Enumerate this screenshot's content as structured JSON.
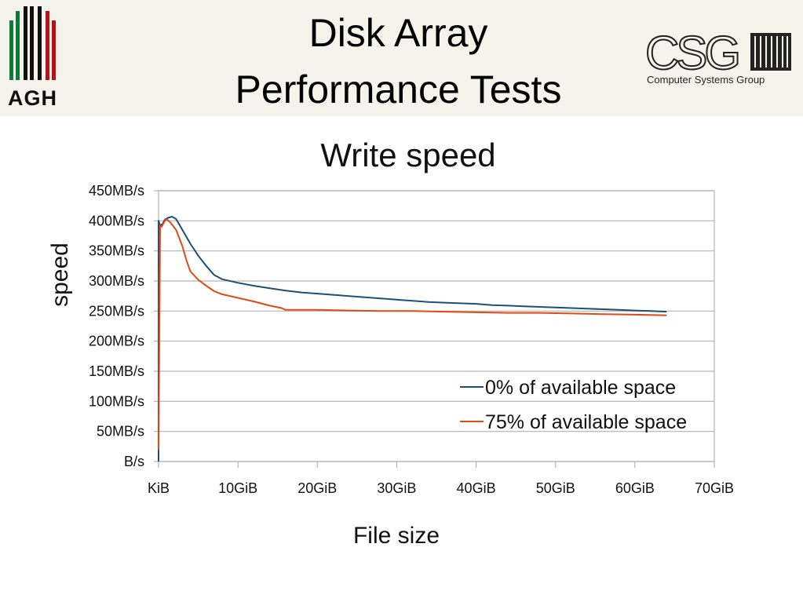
{
  "slide": {
    "title_line1": "Disk Array",
    "title_line2": "Performance Tests",
    "left_logo_text": "AGH",
    "right_logo_text": "Computer Systems Group",
    "right_logo_mark": "CSG"
  },
  "colors": {
    "header_bg": "#f4f4ec",
    "grid": "#b4b4b4",
    "series_0": "#1f4e79",
    "series_75": "#e04a14"
  },
  "chart_data": {
    "type": "line",
    "title": "Write speed",
    "xlabel": "File size",
    "ylabel": "speed",
    "xlim": [
      0,
      70
    ],
    "ylim": [
      0,
      450
    ],
    "x_unit": "GiB",
    "y_unit": "MB/s",
    "x_ticks": [
      0,
      10,
      20,
      30,
      40,
      50,
      60,
      70
    ],
    "x_tick_labels": [
      "KiB",
      "10GiB",
      "20GiB",
      "30GiB",
      "40GiB",
      "50GiB",
      "60GiB",
      "70GiB"
    ],
    "y_ticks": [
      0,
      50,
      100,
      150,
      200,
      250,
      300,
      350,
      400,
      450
    ],
    "y_tick_labels": [
      "B/s",
      "50MB/s",
      "100MB/s",
      "150MB/s",
      "200MB/s",
      "250MB/s",
      "300MB/s",
      "350MB/s",
      "400MB/s",
      "450MB/s"
    ],
    "grid": true,
    "legend_position": "bottom-right",
    "series": [
      {
        "name": "0% of available space",
        "color": "#1f4e79",
        "points": [
          [
            0,
            0
          ],
          [
            0,
            400
          ],
          [
            0.2,
            392
          ],
          [
            0.5,
            395
          ],
          [
            0.8,
            402
          ],
          [
            1.2,
            405
          ],
          [
            1.7,
            407
          ],
          [
            2.2,
            403
          ],
          [
            3,
            385
          ],
          [
            4,
            362
          ],
          [
            5,
            342
          ],
          [
            6,
            325
          ],
          [
            7,
            310
          ],
          [
            8,
            303
          ],
          [
            10,
            297
          ],
          [
            12,
            292
          ],
          [
            14,
            288
          ],
          [
            16,
            284
          ],
          [
            18,
            281
          ],
          [
            20,
            279
          ],
          [
            22,
            277
          ],
          [
            24,
            275
          ],
          [
            26,
            273
          ],
          [
            28,
            271
          ],
          [
            30,
            269
          ],
          [
            32,
            267
          ],
          [
            34,
            265
          ],
          [
            36,
            264
          ],
          [
            38,
            263
          ],
          [
            40,
            262
          ],
          [
            42,
            260
          ],
          [
            44,
            259
          ],
          [
            46,
            258
          ],
          [
            48,
            257
          ],
          [
            50,
            256
          ],
          [
            52,
            255
          ],
          [
            54,
            254
          ],
          [
            56,
            253
          ],
          [
            58,
            252
          ],
          [
            60,
            251
          ],
          [
            62,
            250
          ],
          [
            64,
            249
          ]
        ]
      },
      {
        "name": "75% of available space",
        "color": "#e04a14",
        "points": [
          [
            0,
            20
          ],
          [
            0.2,
            392
          ],
          [
            0.4,
            390
          ],
          [
            0.7,
            398
          ],
          [
            1,
            403
          ],
          [
            1.5,
            397
          ],
          [
            2.2,
            385
          ],
          [
            3,
            358
          ],
          [
            3.5,
            335
          ],
          [
            4,
            316
          ],
          [
            5,
            302
          ],
          [
            6,
            292
          ],
          [
            7,
            283
          ],
          [
            8,
            278
          ],
          [
            10,
            272
          ],
          [
            12,
            266
          ],
          [
            14,
            259
          ],
          [
            15.5,
            255
          ],
          [
            16,
            252
          ],
          [
            20,
            252
          ],
          [
            24,
            251
          ],
          [
            28,
            250
          ],
          [
            32,
            250
          ],
          [
            36,
            249
          ],
          [
            40,
            248
          ],
          [
            44,
            247
          ],
          [
            48,
            247
          ],
          [
            52,
            246
          ],
          [
            56,
            245
          ],
          [
            60,
            244
          ],
          [
            64,
            243
          ]
        ]
      }
    ]
  }
}
